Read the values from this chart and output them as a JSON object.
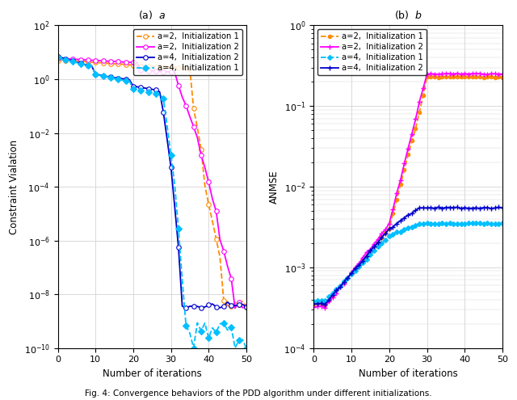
{
  "left_title": "(a)  $a$",
  "right_title": "(b)  $b$",
  "xlabel": "Number of iterations",
  "left_ylabel": "Constraint Vialation",
  "right_ylabel": "ANMSE",
  "left_ylim": [
    1e-10,
    100.0
  ],
  "right_ylim": [
    0.0001,
    1.0
  ],
  "xlim": [
    0,
    50
  ],
  "series_left": [
    {
      "label": "a=2,  Initialization 1",
      "color": "#FF8C00",
      "linestyle": "--",
      "marker": "o",
      "markersize": 4,
      "linewidth": 1.3
    },
    {
      "label": "a=2,  Initialization 2",
      "color": "#FF00FF",
      "linestyle": "-",
      "marker": "o",
      "markersize": 4,
      "linewidth": 1.3
    },
    {
      "label": "a=4,  Initialization 2",
      "color": "#0000CD",
      "linestyle": "-",
      "marker": "o",
      "markersize": 4,
      "linewidth": 1.3
    },
    {
      "label": "a=4,  Initialization 1",
      "color": "#00BFFF",
      "linestyle": "--",
      "marker": "D",
      "markersize": 4,
      "linewidth": 1.3
    }
  ],
  "series_right": [
    {
      "label": "a=2,  Initialization 1",
      "color": "#FF8C00",
      "linestyle": "--",
      "marker": "o",
      "markersize": 3,
      "linewidth": 1.3
    },
    {
      "label": "a=2,  Initialization 2",
      "color": "#FF00FF",
      "linestyle": "-",
      "marker": "+",
      "markersize": 4,
      "linewidth": 1.3
    },
    {
      "label": "a=4,  Initialization 1",
      "color": "#00BFFF",
      "linestyle": "--",
      "marker": "D",
      "markersize": 3,
      "linewidth": 1.3
    },
    {
      "label": "a=4,  Initialization 2",
      "color": "#0000CD",
      "linestyle": "-",
      "marker": "+",
      "markersize": 4,
      "linewidth": 1.3
    }
  ],
  "grid_color": "#D3D3D3",
  "figure_caption": "Fig. 4: Convergence behaviors of the PDD algorithm under different initializations."
}
